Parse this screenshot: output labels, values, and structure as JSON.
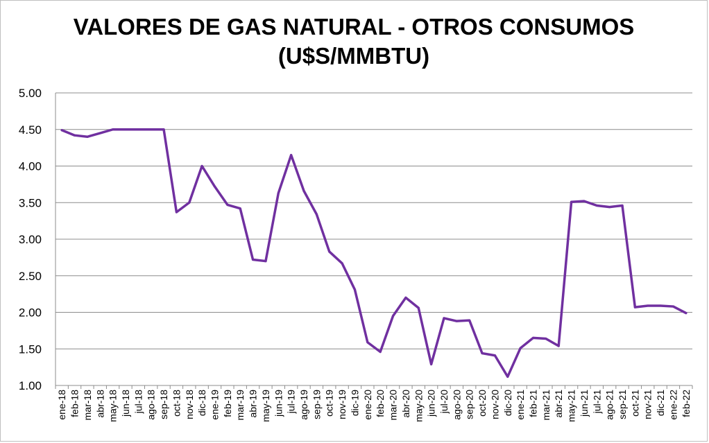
{
  "chart_data": {
    "type": "line",
    "title": "VALORES DE GAS NATURAL - OTROS CONSUMOS",
    "subtitle": "(U$S/MMBTU)",
    "ylim": [
      1.0,
      5.0
    ],
    "yticks": [
      "1.00",
      "1.50",
      "2.00",
      "2.50",
      "3.00",
      "3.50",
      "4.00",
      "4.50",
      "5.00"
    ],
    "grid": true,
    "line_color": "#7030a0",
    "categories": [
      "ene-18",
      "feb-18",
      "mar-18",
      "abr-18",
      "may-18",
      "jun-18",
      "jul-18",
      "ago-18",
      "sep-18",
      "oct-18",
      "nov-18",
      "dic-18",
      "ene-19",
      "feb-19",
      "mar-19",
      "abr-19",
      "may-19",
      "jun-19",
      "jul-19",
      "ago-19",
      "sep-19",
      "oct-19",
      "nov-19",
      "dic-19",
      "ene-20",
      "feb-20",
      "mar-20",
      "abr-20",
      "may-20",
      "jun-20",
      "jul-20",
      "ago-20",
      "sep-20",
      "oct-20",
      "nov-20",
      "dic-20",
      "ene-21",
      "feb-21",
      "mar-21",
      "abr-21",
      "may-21",
      "jun-21",
      "jul-21",
      "ago-21",
      "sep-21",
      "oct-21",
      "nov-21",
      "dic-21",
      "ene-22",
      "feb-22"
    ],
    "values": [
      4.49,
      4.42,
      4.4,
      4.45,
      4.5,
      4.5,
      4.5,
      4.5,
      4.5,
      3.37,
      3.5,
      4.0,
      3.72,
      3.47,
      3.42,
      2.72,
      2.7,
      3.63,
      4.15,
      3.66,
      3.34,
      2.83,
      2.67,
      2.31,
      1.59,
      1.46,
      1.95,
      2.2,
      2.06,
      1.29,
      1.92,
      1.88,
      1.89,
      1.44,
      1.41,
      1.12,
      1.51,
      1.65,
      1.64,
      1.54,
      3.51,
      3.52,
      3.46,
      3.44,
      3.46,
      2.07,
      2.09,
      2.09,
      2.08,
      1.99
    ]
  }
}
